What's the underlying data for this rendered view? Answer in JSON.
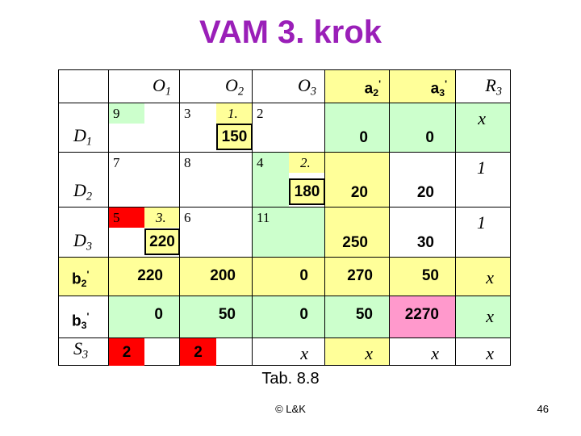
{
  "title": "VAM 3. krok",
  "table": {
    "columns": [
      {
        "base": "O",
        "sub": "1"
      },
      {
        "base": "O",
        "sub": "2"
      },
      {
        "base": "O",
        "sub": "3"
      },
      {
        "base": "a",
        "sub": "2",
        "sup": "'"
      },
      {
        "base": "a",
        "sub": "3",
        "sup": "'"
      },
      {
        "base": "R",
        "sub": "3"
      }
    ],
    "rows": [
      {
        "label": {
          "base": "D",
          "sub": "1"
        },
        "cells": [
          {
            "cost": 9
          },
          {
            "cost": 3,
            "order": "1.",
            "amount": 150
          },
          {
            "cost": 2
          },
          0,
          0,
          "x"
        ]
      },
      {
        "label": {
          "base": "D",
          "sub": "2"
        },
        "cells": [
          {
            "cost": 7
          },
          {
            "cost": 8
          },
          {
            "cost": 4,
            "order": "2.",
            "amount": 180
          },
          20,
          20,
          1
        ]
      },
      {
        "label": {
          "base": "D",
          "sub": "3"
        },
        "cells": [
          {
            "cost": 5,
            "order": "3.",
            "amount": 220
          },
          {
            "cost": 6
          },
          {
            "cost": 11
          },
          250,
          30,
          1
        ]
      },
      {
        "label": {
          "base": "b",
          "sub": "2",
          "sup": "'"
        },
        "cells": [
          220,
          200,
          0,
          270,
          50,
          "x"
        ]
      },
      {
        "label": {
          "base": "b",
          "sub": "3",
          "sup": "'"
        },
        "cells": [
          0,
          50,
          0,
          50,
          2270,
          "x"
        ]
      },
      {
        "label": {
          "base": "S",
          "sub": "3"
        },
        "cells": [
          2,
          2,
          "x",
          "x",
          "x",
          "x"
        ]
      }
    ]
  },
  "caption": "Tab. 8.8",
  "footer": "© L&K",
  "page_number": "46"
}
